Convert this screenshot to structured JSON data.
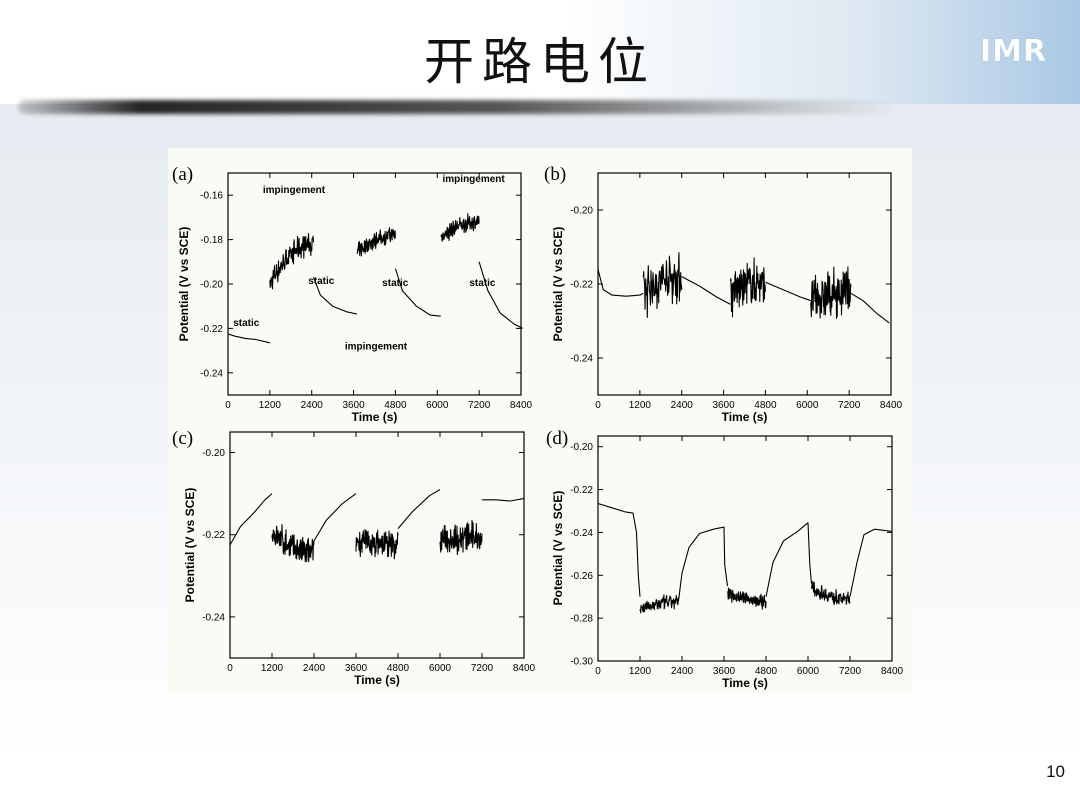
{
  "slide": {
    "title": "开路电位",
    "logo_text": "IMR",
    "page_number": "10"
  },
  "chart_data": [
    {
      "panel": "(a)",
      "type": "line",
      "xlabel": "Time (s)",
      "ylabel": "Potential (V vs SCE)",
      "xlim": [
        0,
        8400
      ],
      "ylim": [
        -0.25,
        -0.15
      ],
      "xticks": [
        "0",
        "1200",
        "2400",
        "3600",
        "4800",
        "6000",
        "7200",
        "8400"
      ],
      "yticks": [
        "-0.16",
        "-0.18",
        "-0.20",
        "-0.22",
        "-0.24"
      ],
      "ytick_values": [
        -0.16,
        -0.18,
        -0.2,
        -0.22,
        -0.24
      ],
      "annotations": [
        {
          "text": "impingement",
          "x": 1000,
          "y": -0.159
        },
        {
          "text": "impingement",
          "x": 6150,
          "y": -0.154
        },
        {
          "text": "static",
          "x": 2300,
          "y": -0.2
        },
        {
          "text": "static",
          "x": 4420,
          "y": -0.201
        },
        {
          "text": "static",
          "x": 6920,
          "y": -0.201
        },
        {
          "text": "static",
          "x": 150,
          "y": -0.219
        },
        {
          "text": "impingement",
          "x": 3350,
          "y": -0.2295
        }
      ],
      "series": [
        {
          "segments": [
            {
              "kind": "smooth",
              "points": [
                [
                  0,
                  -0.2225
                ],
                [
                  200,
                  -0.2235
                ],
                [
                  500,
                  -0.2245
                ],
                [
                  800,
                  -0.225
                ],
                [
                  1200,
                  -0.2265
                ]
              ]
            },
            {
              "kind": "noisy",
              "x_start": 1200,
              "x_end": 2450,
              "y_start": -0.2,
              "y_end": -0.182,
              "amplitude": 0.012
            },
            {
              "kind": "smooth",
              "points": [
                [
                  2450,
                  -0.197
                ],
                [
                  2650,
                  -0.205
                ],
                [
                  3000,
                  -0.21
                ],
                [
                  3400,
                  -0.2125
                ],
                [
                  3700,
                  -0.2135
                ]
              ]
            },
            {
              "kind": "noisy",
              "x_start": 3700,
              "x_end": 4800,
              "y_start": -0.186,
              "y_end": -0.178,
              "amplitude": 0.009
            },
            {
              "kind": "smooth",
              "points": [
                [
                  4800,
                  -0.193
                ],
                [
                  5000,
                  -0.203
                ],
                [
                  5400,
                  -0.21
                ],
                [
                  5800,
                  -0.214
                ],
                [
                  6100,
                  -0.2145
                ]
              ]
            },
            {
              "kind": "noisy",
              "x_start": 6100,
              "x_end": 7200,
              "y_start": -0.179,
              "y_end": -0.172,
              "amplitude": 0.009
            },
            {
              "kind": "smooth",
              "points": [
                [
                  7200,
                  -0.19
                ],
                [
                  7450,
                  -0.203
                ],
                [
                  7800,
                  -0.213
                ],
                [
                  8200,
                  -0.218
                ],
                [
                  8450,
                  -0.22
                ]
              ]
            }
          ]
        }
      ]
    },
    {
      "panel": "(b)",
      "type": "line",
      "xlabel": "Time (s)",
      "ylabel": "Potential (V vs SCE)",
      "xlim": [
        0,
        8400
      ],
      "ylim": [
        -0.25,
        -0.19
      ],
      "xticks": [
        "0",
        "1200",
        "2400",
        "3600",
        "4800",
        "6000",
        "7200",
        "8400"
      ],
      "yticks": [
        "-0.20",
        "-0.22",
        "-0.24"
      ],
      "ytick_values": [
        -0.2,
        -0.22,
        -0.24
      ],
      "series": [
        {
          "segments": [
            {
              "kind": "smooth",
              "points": [
                [
                  0,
                  -0.216
                ],
                [
                  150,
                  -0.2215
                ],
                [
                  400,
                  -0.223
                ],
                [
                  800,
                  -0.2233
                ],
                [
                  1200,
                  -0.223
                ],
                [
                  1300,
                  -0.2225
                ]
              ]
            },
            {
              "kind": "noisy",
              "x_start": 1300,
              "x_end": 2400,
              "y_start": -0.2225,
              "y_end": -0.218,
              "amplitude": 0.016
            },
            {
              "kind": "smooth",
              "points": [
                [
                  2400,
                  -0.218
                ],
                [
                  2900,
                  -0.2205
                ],
                [
                  3400,
                  -0.2235
                ],
                [
                  3800,
                  -0.2255
                ]
              ]
            },
            {
              "kind": "noisy",
              "x_start": 3800,
              "x_end": 4800,
              "y_start": -0.2225,
              "y_end": -0.2195,
              "amplitude": 0.015
            },
            {
              "kind": "smooth",
              "points": [
                [
                  4800,
                  -0.2195
                ],
                [
                  5300,
                  -0.2215
                ],
                [
                  5800,
                  -0.2235
                ],
                [
                  6100,
                  -0.2245
                ]
              ]
            },
            {
              "kind": "noisy",
              "x_start": 6100,
              "x_end": 7250,
              "y_start": -0.2245,
              "y_end": -0.2225,
              "amplitude": 0.015
            },
            {
              "kind": "smooth",
              "points": [
                [
                  7250,
                  -0.2225
                ],
                [
                  7600,
                  -0.2245
                ],
                [
                  8000,
                  -0.228
                ],
                [
                  8350,
                  -0.2305
                ]
              ]
            }
          ]
        }
      ]
    },
    {
      "panel": "(c)",
      "type": "line",
      "xlabel": "Time (s)",
      "ylabel": "Potential (V vs SCE)",
      "xlim": [
        0,
        8400
      ],
      "ylim": [
        -0.25,
        -0.195
      ],
      "xticks": [
        "0",
        "1200",
        "2400",
        "3600",
        "4800",
        "6000",
        "7200",
        "8400"
      ],
      "yticks": [
        "-0.20",
        "-0.22",
        "-0.24"
      ],
      "ytick_values": [
        -0.2,
        -0.22,
        -0.24
      ],
      "series": [
        {
          "segments": [
            {
              "kind": "smooth",
              "points": [
                [
                  0,
                  -0.2225
                ],
                [
                  300,
                  -0.218
                ],
                [
                  700,
                  -0.2145
                ],
                [
                  1000,
                  -0.2115
                ],
                [
                  1200,
                  -0.21
                ]
              ]
            },
            {
              "kind": "noisy",
              "x_start": 1200,
              "x_end": 2400,
              "y_start": -0.2195,
              "y_end": -0.2245,
              "amplitude": 0.009
            },
            {
              "kind": "smooth",
              "points": [
                [
                  2400,
                  -0.2215
                ],
                [
                  2750,
                  -0.2165
                ],
                [
                  3200,
                  -0.2125
                ],
                [
                  3600,
                  -0.21
                ]
              ]
            },
            {
              "kind": "noisy",
              "x_start": 3600,
              "x_end": 4800,
              "y_start": -0.2215,
              "y_end": -0.2225,
              "amplitude": 0.008
            },
            {
              "kind": "smooth",
              "points": [
                [
                  4800,
                  -0.2185
                ],
                [
                  5200,
                  -0.2145
                ],
                [
                  5700,
                  -0.2105
                ],
                [
                  6000,
                  -0.209
                ]
              ]
            },
            {
              "kind": "noisy",
              "x_start": 6000,
              "x_end": 7200,
              "y_start": -0.221,
              "y_end": -0.2205,
              "amplitude": 0.009
            },
            {
              "kind": "smooth",
              "points": [
                [
                  7200,
                  -0.2115
                ],
                [
                  7600,
                  -0.2115
                ],
                [
                  8000,
                  -0.2118
                ],
                [
                  8400,
                  -0.2112
                ]
              ]
            }
          ]
        }
      ]
    },
    {
      "panel": "(d)",
      "type": "line",
      "xlabel": "Time (s)",
      "ylabel": "Potential (V vs SCE)",
      "xlim": [
        0,
        8400
      ],
      "ylim": [
        -0.3,
        -0.195
      ],
      "xticks": [
        "0",
        "1200",
        "2400",
        "3600",
        "4800",
        "6000",
        "7200",
        "8400"
      ],
      "yticks": [
        "-0.20",
        "-0.22",
        "-0.24",
        "-0.26",
        "-0.28",
        "-0.30"
      ],
      "ytick_values": [
        -0.2,
        -0.22,
        -0.24,
        -0.26,
        -0.28,
        -0.3
      ],
      "series": [
        {
          "segments": [
            {
              "kind": "smooth",
              "points": [
                [
                  0,
                  -0.2265
                ],
                [
                  400,
                  -0.2285
                ],
                [
                  800,
                  -0.2305
                ],
                [
                  1000,
                  -0.231
                ],
                [
                  1100,
                  -0.24
                ],
                [
                  1150,
                  -0.26
                ],
                [
                  1200,
                  -0.27
                ]
              ]
            },
            {
              "kind": "noisy",
              "x_start": 1200,
              "x_end": 2300,
              "y_start": -0.2755,
              "y_end": -0.2725,
              "amplitude": 0.008
            },
            {
              "kind": "smooth",
              "points": [
                [
                  2300,
                  -0.272
                ],
                [
                  2400,
                  -0.259
                ],
                [
                  2600,
                  -0.247
                ],
                [
                  2900,
                  -0.2405
                ],
                [
                  3300,
                  -0.2385
                ],
                [
                  3600,
                  -0.2375
                ],
                [
                  3620,
                  -0.255
                ],
                [
                  3700,
                  -0.265
                ]
              ]
            },
            {
              "kind": "noisy",
              "x_start": 3700,
              "x_end": 4800,
              "y_start": -0.268,
              "y_end": -0.272,
              "amplitude": 0.008
            },
            {
              "kind": "smooth",
              "points": [
                [
                  4800,
                  -0.27
                ],
                [
                  5000,
                  -0.254
                ],
                [
                  5300,
                  -0.244
                ],
                [
                  5700,
                  -0.2395
                ],
                [
                  6000,
                  -0.2355
                ],
                [
                  6050,
                  -0.255
                ],
                [
                  6100,
                  -0.264
                ]
              ]
            },
            {
              "kind": "noisy",
              "x_start": 6100,
              "x_end": 7200,
              "y_start": -0.266,
              "y_end": -0.271,
              "amplitude": 0.008
            },
            {
              "kind": "smooth",
              "points": [
                [
                  7200,
                  -0.27
                ],
                [
                  7400,
                  -0.254
                ],
                [
                  7600,
                  -0.241
                ],
                [
                  7900,
                  -0.2385
                ],
                [
                  8400,
                  -0.2395
                ]
              ]
            }
          ]
        }
      ]
    }
  ]
}
